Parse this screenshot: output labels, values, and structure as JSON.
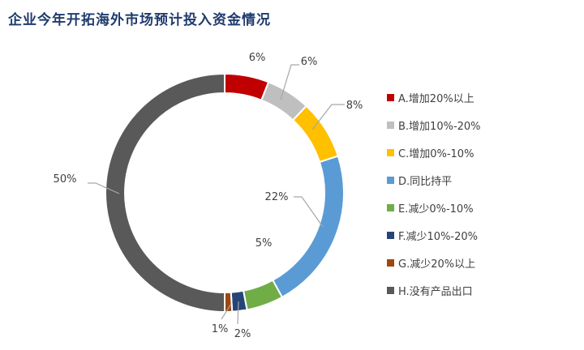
{
  "chart_data": {
    "type": "pie",
    "subtype": "donut",
    "title": "企业今年开拓海外市场预计投入资金情况",
    "legend_position": "right",
    "categories": [
      "A.增加20%以上",
      "B.增加10%-20%",
      "C.增加0%-10%",
      "D.同比持平",
      "E.减少0%-10%",
      "F.减少10%-20%",
      "G.减少20%以上",
      "H.没有产品出口"
    ],
    "values": [
      6,
      6,
      8,
      22,
      5,
      2,
      1,
      50
    ],
    "value_labels": [
      "6%",
      "6%",
      "8%",
      "22%",
      "5%",
      "2%",
      "1%",
      "50%"
    ],
    "colors": [
      "#c00000",
      "#bfbfbf",
      "#ffc000",
      "#5b9bd5",
      "#70ad47",
      "#264478",
      "#9e480e",
      "#595959"
    ]
  }
}
